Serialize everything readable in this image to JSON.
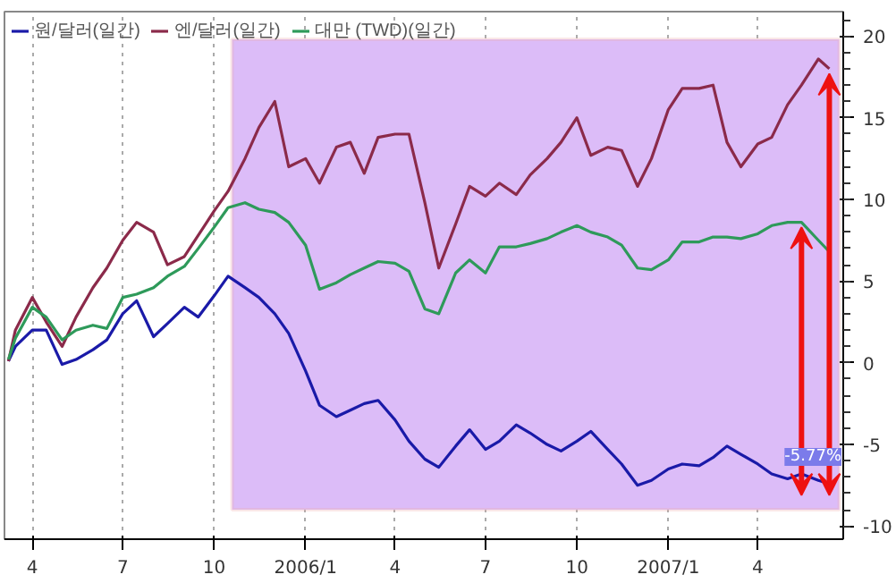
{
  "chart_data": {
    "type": "line",
    "x": [
      "2005-03-08",
      "2005-03-15",
      "2005-04-01",
      "2005-04-15",
      "2005-05-01",
      "2005-05-15",
      "2005-06-01",
      "2005-06-15",
      "2005-07-01",
      "2005-07-15",
      "2005-08-01",
      "2005-08-15",
      "2005-09-01",
      "2005-09-15",
      "2005-10-01",
      "2005-10-15",
      "2005-11-01",
      "2005-11-15",
      "2005-12-01",
      "2005-12-15",
      "2006-01-01",
      "2006-01-15",
      "2006-02-01",
      "2006-02-15",
      "2006-03-01",
      "2006-03-15",
      "2006-04-01",
      "2006-04-15",
      "2006-05-01",
      "2006-05-15",
      "2006-06-01",
      "2006-06-15",
      "2006-07-01",
      "2006-07-15",
      "2006-08-01",
      "2006-08-15",
      "2006-09-01",
      "2006-09-15",
      "2006-10-01",
      "2006-10-15",
      "2006-11-01",
      "2006-11-15",
      "2006-12-01",
      "2006-12-15",
      "2007-01-01",
      "2007-01-15",
      "2007-02-01",
      "2007-02-15",
      "2007-03-01",
      "2007-03-15",
      "2007-04-01",
      "2007-04-15",
      "2007-05-01",
      "2007-05-15",
      "2007-06-01",
      "2007-06-12"
    ],
    "series": [
      {
        "name": "원/달러(일간)",
        "color": "#1a1aa8",
        "values": [
          0.1,
          1.0,
          2.0,
          2.0,
          -0.1,
          0.2,
          0.8,
          1.4,
          3.0,
          3.8,
          1.6,
          2.4,
          3.4,
          2.8,
          4.1,
          5.3,
          4.6,
          4.0,
          3.0,
          1.8,
          -0.5,
          -2.6,
          -3.3,
          -2.9,
          -2.5,
          -2.3,
          -3.5,
          -4.8,
          -5.9,
          -6.4,
          -5.1,
          -4.1,
          -5.3,
          -4.8,
          -3.8,
          -4.3,
          -5.0,
          -5.4,
          -4.8,
          -4.2,
          -5.3,
          -6.2,
          -7.5,
          -7.2,
          -6.5,
          -6.2,
          -6.3,
          -5.8,
          -5.1,
          -5.6,
          -6.2,
          -6.8,
          -7.1,
          -6.8,
          -7.2,
          -7.4
        ]
      },
      {
        "name": "엔/달러(일간)",
        "color": "#8b2a4a",
        "values": [
          0.1,
          2.0,
          4.0,
          2.5,
          1.0,
          2.8,
          4.6,
          5.8,
          7.5,
          8.6,
          8.0,
          6.0,
          6.5,
          7.8,
          9.3,
          10.5,
          12.5,
          14.4,
          16.0,
          12.0,
          12.5,
          11.0,
          13.2,
          13.5,
          11.6,
          13.8,
          14.0,
          14.0,
          9.8,
          5.8,
          8.5,
          10.8,
          10.2,
          11.0,
          10.3,
          11.5,
          12.5,
          13.5,
          15.0,
          12.7,
          13.2,
          13.0,
          10.8,
          12.5,
          15.5,
          16.8,
          16.8,
          17.0,
          13.5,
          12.0,
          13.4,
          13.8,
          15.8,
          17.0,
          18.6,
          18.0
        ]
      },
      {
        "name": "대만 (TWD)(일간)",
        "color": "#2e9a5a",
        "values": [
          0.2,
          1.5,
          3.4,
          2.8,
          1.4,
          2.0,
          2.3,
          2.1,
          4.0,
          4.2,
          4.6,
          5.3,
          5.9,
          7.0,
          8.3,
          9.5,
          9.8,
          9.4,
          9.2,
          8.6,
          7.2,
          4.5,
          4.9,
          5.4,
          5.8,
          6.2,
          6.1,
          5.6,
          3.3,
          3.0,
          5.5,
          6.3,
          5.5,
          7.1,
          7.1,
          7.3,
          7.6,
          8.0,
          8.4,
          8.0,
          7.7,
          7.2,
          5.8,
          5.7,
          6.3,
          7.4,
          7.4,
          7.7,
          7.7,
          7.6,
          7.9,
          8.4,
          8.6,
          8.6,
          7.5,
          6.8
        ]
      }
    ],
    "xlim": [
      "2005-03-04",
      "2007-06-26"
    ],
    "xticks": [
      {
        "value": "2005-04-01",
        "label": "4"
      },
      {
        "value": "2005-07-01",
        "label": "7"
      },
      {
        "value": "2005-10-01",
        "label": "10"
      },
      {
        "value": "2006-01-01",
        "label": "2006/1"
      },
      {
        "value": "2006-04-01",
        "label": "4"
      },
      {
        "value": "2006-07-01",
        "label": "7"
      },
      {
        "value": "2006-10-01",
        "label": "10"
      },
      {
        "value": "2007-01-01",
        "label": "2007/1"
      },
      {
        "value": "2007-04-01",
        "label": "4"
      }
    ],
    "ylim": [
      -10.8,
      21.5
    ],
    "yticks": [
      -10,
      -5,
      0,
      5,
      10,
      15,
      20
    ],
    "bands": [
      {
        "axis": "x",
        "from": "2005-10-19",
        "to": "2007-06-22",
        "label": null,
        "color": "#dcbcf8"
      }
    ],
    "annotations": [
      {
        "text": "-5.77%",
        "y": -5.77
      }
    ],
    "grid": "x",
    "legend": "top left",
    "line_style": "solid",
    "marker": "none"
  }
}
